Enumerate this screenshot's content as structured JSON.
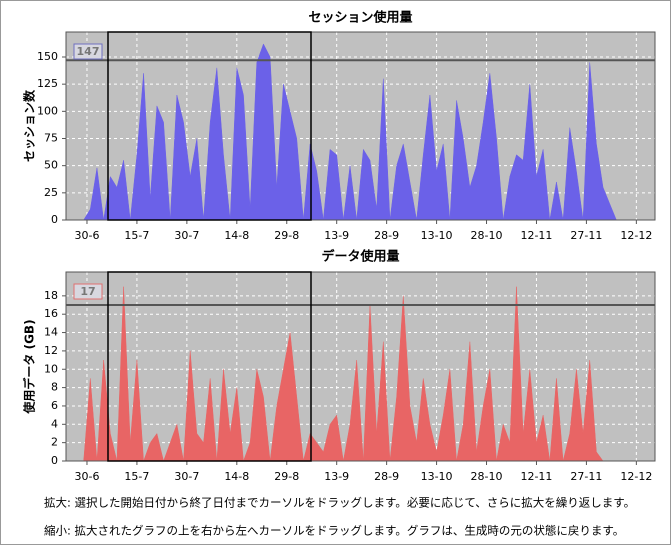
{
  "chart_data": [
    {
      "type": "area",
      "title": "セッション使用量",
      "y_label": "セッション数",
      "color": "#6b61e8",
      "grid": true,
      "reference_line": 147,
      "xlim": [
        174.7,
        351.6
      ],
      "ylim": [
        0,
        173
      ],
      "xticks": [
        {
          "value": 181,
          "label": "30-6"
        },
        {
          "value": 196,
          "label": "15-7"
        },
        {
          "value": 211,
          "label": "30-7"
        },
        {
          "value": 226,
          "label": "14-8"
        },
        {
          "value": 241,
          "label": "29-8"
        },
        {
          "value": 256,
          "label": "13-9"
        },
        {
          "value": 271,
          "label": "28-9"
        },
        {
          "value": 286,
          "label": "13-10"
        },
        {
          "value": 301,
          "label": "28-10"
        },
        {
          "value": 316,
          "label": "12-11"
        },
        {
          "value": 331,
          "label": "27-11"
        },
        {
          "value": 346,
          "label": "12-12"
        }
      ],
      "yticks": [
        0,
        25,
        50,
        75,
        100,
        125,
        150
      ],
      "x": [
        178,
        180,
        182,
        184,
        186,
        188,
        190,
        192,
        194,
        196,
        198,
        200,
        202,
        204,
        206,
        208,
        210,
        212,
        214,
        216,
        218,
        220,
        222,
        224,
        226,
        228,
        230,
        232,
        234,
        236,
        238,
        240,
        242,
        244,
        246,
        248,
        250,
        252,
        254,
        256,
        258,
        260,
        262,
        264,
        266,
        268,
        270,
        272,
        274,
        276,
        278,
        280,
        282,
        284,
        286,
        288,
        290,
        292,
        294,
        296,
        298,
        300,
        302,
        304,
        306,
        308,
        310,
        312,
        314,
        316,
        318,
        320,
        322,
        324,
        326,
        328,
        330,
        332,
        334,
        336,
        338,
        340
      ],
      "values": [
        0,
        0,
        10,
        48,
        0,
        40,
        30,
        55,
        0,
        60,
        135,
        20,
        105,
        90,
        0,
        115,
        90,
        40,
        75,
        0,
        90,
        140,
        60,
        0,
        140,
        115,
        10,
        145,
        162,
        150,
        30,
        125,
        100,
        75,
        0,
        70,
        45,
        0,
        65,
        60,
        0,
        50,
        0,
        65,
        55,
        10,
        130,
        0,
        50,
        70,
        35,
        0,
        60,
        115,
        45,
        70,
        0,
        110,
        75,
        30,
        50,
        90,
        135,
        75,
        0,
        40,
        60,
        55,
        125,
        40,
        65,
        0,
        35,
        0,
        85,
        45,
        0,
        145,
        70,
        30,
        15,
        0
      ]
    },
    {
      "type": "area",
      "title": "データ使用量",
      "y_label": "使用データ (GB)",
      "color": "#e86565",
      "grid": true,
      "reference_line": 17,
      "xlim": [
        174.7,
        351.6
      ],
      "ylim": [
        0,
        20.6
      ],
      "xticks": [
        {
          "value": 181,
          "label": "30-6"
        },
        {
          "value": 196,
          "label": "15-7"
        },
        {
          "value": 211,
          "label": "30-7"
        },
        {
          "value": 226,
          "label": "14-8"
        },
        {
          "value": 241,
          "label": "29-8"
        },
        {
          "value": 256,
          "label": "13-9"
        },
        {
          "value": 271,
          "label": "28-9"
        },
        {
          "value": 286,
          "label": "13-10"
        },
        {
          "value": 301,
          "label": "28-10"
        },
        {
          "value": 316,
          "label": "12-11"
        },
        {
          "value": 331,
          "label": "27-11"
        },
        {
          "value": 346,
          "label": "12-12"
        }
      ],
      "yticks": [
        0,
        2,
        4,
        6,
        8,
        10,
        12,
        14,
        16,
        18
      ],
      "x": [
        178,
        180,
        182,
        184,
        186,
        188,
        190,
        192,
        194,
        196,
        198,
        200,
        202,
        204,
        206,
        208,
        210,
        212,
        214,
        216,
        218,
        220,
        222,
        224,
        226,
        228,
        230,
        232,
        234,
        236,
        238,
        240,
        242,
        244,
        246,
        248,
        250,
        252,
        254,
        256,
        258,
        260,
        262,
        264,
        266,
        268,
        270,
        272,
        274,
        276,
        278,
        280,
        282,
        284,
        286,
        288,
        290,
        292,
        294,
        296,
        298,
        300,
        302,
        304,
        306,
        308,
        310,
        312,
        314,
        316,
        318,
        320,
        322,
        324,
        326,
        328,
        330,
        332,
        334,
        336
      ],
      "values": [
        0,
        0,
        9,
        0,
        11,
        3,
        0,
        19,
        2,
        11,
        0,
        2,
        3,
        0,
        2,
        4,
        0,
        12,
        3,
        2,
        9,
        0,
        10,
        3,
        8,
        0,
        2,
        10,
        7,
        0,
        6,
        10,
        14,
        7,
        0,
        3,
        2,
        1,
        4,
        5,
        0,
        4,
        11,
        0,
        17,
        3,
        13,
        0,
        7,
        18,
        6,
        2,
        9,
        4,
        1,
        5,
        10,
        0,
        4,
        13,
        1,
        6,
        10,
        0,
        4,
        2,
        19,
        3,
        10,
        2,
        5,
        0,
        9,
        0,
        3,
        10,
        3,
        11,
        1,
        0
      ]
    }
  ],
  "notes": [
    "拡大: 選択した開始日付から終了日付までカーソルをドラッグします。必要に応じて、さらに拡大を繰り返します。",
    "縮小: 拡大されたグラフの上を右から左へカーソルをドラッグします。グラフは、生成時の元の状態に戻ります。"
  ]
}
